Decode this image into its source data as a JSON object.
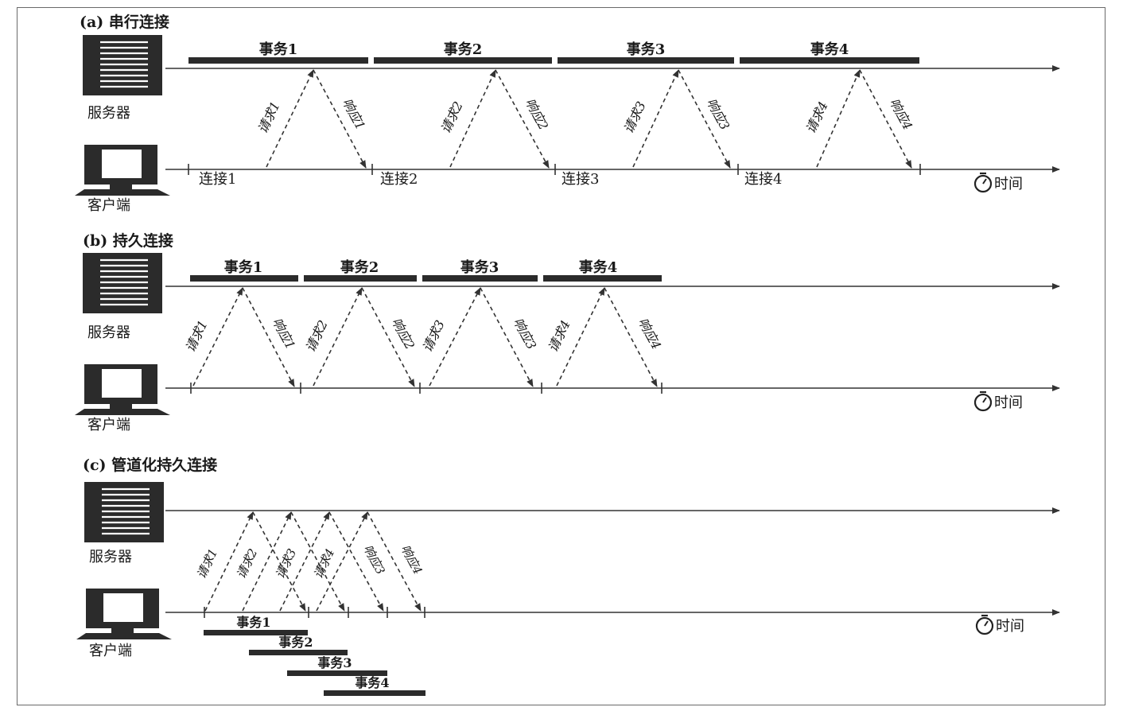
{
  "server_label": "服务器",
  "client_label": "客户端",
  "time_label": "时间",
  "panel_a": {
    "title": "(a) 串行连接",
    "transactions": [
      "事务1",
      "事务2",
      "事务3",
      "事务4"
    ],
    "requests": [
      "请求1",
      "请求2",
      "请求3",
      "请求4"
    ],
    "responses": [
      "响应1",
      "响应2",
      "响应3",
      "响应4"
    ],
    "connections": [
      "连接1",
      "连接2",
      "连接3",
      "连接4"
    ]
  },
  "panel_b": {
    "title": "(b) 持久连接",
    "transactions": [
      "事务1",
      "事务2",
      "事务3",
      "事务4"
    ],
    "requests": [
      "请求1",
      "请求2",
      "请求3",
      "请求4"
    ],
    "responses": [
      "响应1",
      "响应2",
      "响应3",
      "响应4"
    ]
  },
  "panel_c": {
    "title": "(c) 管道化持久连接",
    "transactions": [
      "事务1",
      "事务2",
      "事务3",
      "事务4"
    ],
    "requests": [
      "请求1",
      "请求2",
      "请求3",
      "请求4"
    ],
    "responses": [
      "响应3",
      "响应4"
    ]
  },
  "colors": {
    "ink": "#2b2b2b",
    "line": "#333333",
    "background": "#ffffff"
  }
}
